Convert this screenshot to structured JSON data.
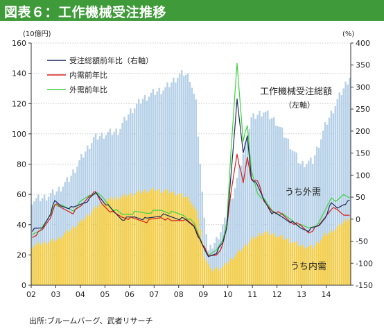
{
  "header": {
    "title": "図表６：工作機械受注推移"
  },
  "source": "出所:ブルームバーグ、武者リサーチ",
  "colors": {
    "header_bg": "#3f9a3a",
    "total_bars": "#b7d1e8",
    "domestic_bars": "#f6cf49",
    "total_yoy": "#1f2a5a",
    "domestic_yoy": "#d81e1e",
    "foreign_yoy": "#3ed13e"
  },
  "chart_data": {
    "type": "bar",
    "x_tick_labels": [
      "02",
      "03",
      "04",
      "05",
      "06",
      "07",
      "08",
      "09",
      "10",
      "11",
      "12",
      "13",
      "14"
    ],
    "left_axis": {
      "unit": "(10億円)",
      "range": [
        0,
        160
      ],
      "ticks": [
        0,
        20,
        40,
        60,
        80,
        100,
        120,
        140,
        160
      ]
    },
    "right_axis": {
      "unit": "(%)",
      "range": [
        -150,
        400
      ],
      "ticks": [
        -150,
        -100,
        -50,
        0,
        50,
        100,
        150,
        200,
        250,
        300,
        350,
        400
      ]
    },
    "grid": true,
    "legend": {
      "position": "top-left",
      "entries": [
        "受注総額前年比（右軸）",
        "内需前年比",
        "外需前年比"
      ]
    },
    "annotations": {
      "total": [
        "工作機械受注総額",
        "（左軸）"
      ],
      "foreign": "うち外需",
      "domestic": "うち内需"
    },
    "bar_series": [
      {
        "name": "工作機械受注総額",
        "axis": "left",
        "color": "#b7d1e8",
        "anchors": [
          [
            "2002-01",
            56
          ],
          [
            "2002-07",
            58
          ],
          [
            "2003-01",
            62
          ],
          [
            "2003-07",
            70
          ],
          [
            "2004-01",
            84
          ],
          [
            "2004-07",
            97
          ],
          [
            "2005-01",
            100
          ],
          [
            "2005-07",
            102
          ],
          [
            "2006-01",
            115
          ],
          [
            "2006-07",
            123
          ],
          [
            "2006-12",
            127
          ],
          [
            "2007-06",
            130
          ],
          [
            "2007-12",
            138
          ],
          [
            "2008-03",
            140
          ],
          [
            "2008-06",
            137
          ],
          [
            "2008-09",
            120
          ],
          [
            "2008-12",
            60
          ],
          [
            "2009-03",
            22
          ],
          [
            "2009-07",
            30
          ],
          [
            "2009-12",
            45
          ],
          [
            "2010-06",
            75
          ],
          [
            "2010-12",
            110
          ],
          [
            "2011-06",
            115
          ],
          [
            "2011-12",
            108
          ],
          [
            "2012-06",
            95
          ],
          [
            "2012-12",
            80
          ],
          [
            "2013-06",
            82
          ],
          [
            "2013-12",
            105
          ],
          [
            "2014-06",
            122
          ],
          [
            "2014-12",
            138
          ]
        ]
      },
      {
        "name": "うち内需",
        "axis": "left",
        "color": "#f6cf49",
        "anchors": [
          [
            "2002-01",
            26
          ],
          [
            "2002-07",
            28
          ],
          [
            "2003-01",
            30
          ],
          [
            "2003-07",
            36
          ],
          [
            "2004-01",
            42
          ],
          [
            "2004-07",
            50
          ],
          [
            "2005-01",
            56
          ],
          [
            "2005-07",
            58
          ],
          [
            "2006-01",
            60
          ],
          [
            "2006-07",
            62
          ],
          [
            "2007-01",
            63
          ],
          [
            "2007-07",
            62
          ],
          [
            "2008-01",
            60
          ],
          [
            "2008-06",
            57
          ],
          [
            "2008-10",
            45
          ],
          [
            "2009-01",
            20
          ],
          [
            "2009-04",
            10
          ],
          [
            "2009-10",
            12
          ],
          [
            "2010-06",
            22
          ],
          [
            "2010-12",
            30
          ],
          [
            "2011-06",
            35
          ],
          [
            "2011-12",
            33
          ],
          [
            "2012-06",
            30
          ],
          [
            "2012-12",
            26
          ],
          [
            "2013-06",
            25
          ],
          [
            "2013-12",
            33
          ],
          [
            "2014-06",
            38
          ],
          [
            "2014-12",
            45
          ]
        ]
      }
    ],
    "line_series": [
      {
        "name": "受注総額前年比（右軸）",
        "axis": "right",
        "color": "#1f2a5a",
        "anchors": [
          [
            "2002-01",
            -25
          ],
          [
            "2002-06",
            -20
          ],
          [
            "2002-10",
            15
          ],
          [
            "2002-12",
            40
          ],
          [
            "2003-03",
            30
          ],
          [
            "2003-09",
            25
          ],
          [
            "2004-01",
            35
          ],
          [
            "2004-05",
            45
          ],
          [
            "2004-08",
            60
          ],
          [
            "2004-11",
            45
          ],
          [
            "2005-04",
            20
          ],
          [
            "2005-09",
            0
          ],
          [
            "2006-03",
            5
          ],
          [
            "2006-09",
            0
          ],
          [
            "2007-04",
            10
          ],
          [
            "2007-09",
            5
          ],
          [
            "2008-03",
            0
          ],
          [
            "2008-08",
            -15
          ],
          [
            "2008-12",
            -60
          ],
          [
            "2009-03",
            -85
          ],
          [
            "2009-07",
            -75
          ],
          [
            "2009-10",
            -55
          ],
          [
            "2009-12",
            -20
          ],
          [
            "2010-02",
            100
          ],
          [
            "2010-05",
            270
          ],
          [
            "2010-08",
            150
          ],
          [
            "2010-10",
            190
          ],
          [
            "2010-12",
            95
          ],
          [
            "2011-03",
            75
          ],
          [
            "2011-06",
            45
          ],
          [
            "2011-10",
            15
          ],
          [
            "2012-03",
            5
          ],
          [
            "2012-07",
            -5
          ],
          [
            "2012-12",
            -20
          ],
          [
            "2013-04",
            -25
          ],
          [
            "2013-09",
            -15
          ],
          [
            "2013-12",
            5
          ],
          [
            "2014-03",
            35
          ],
          [
            "2014-06",
            25
          ],
          [
            "2014-09",
            35
          ],
          [
            "2014-12",
            40
          ]
        ]
      },
      {
        "name": "内需前年比",
        "axis": "right",
        "color": "#d81e1e",
        "anchors": [
          [
            "2002-01",
            -40
          ],
          [
            "2002-06",
            -25
          ],
          [
            "2002-10",
            5
          ],
          [
            "2002-12",
            35
          ],
          [
            "2003-03",
            25
          ],
          [
            "2003-09",
            15
          ],
          [
            "2004-01",
            30
          ],
          [
            "2004-05",
            55
          ],
          [
            "2004-08",
            60
          ],
          [
            "2004-11",
            35
          ],
          [
            "2005-04",
            15
          ],
          [
            "2005-09",
            5
          ],
          [
            "2006-03",
            0
          ],
          [
            "2006-09",
            -5
          ],
          [
            "2007-04",
            5
          ],
          [
            "2007-09",
            -5
          ],
          [
            "2008-03",
            0
          ],
          [
            "2008-08",
            -15
          ],
          [
            "2008-12",
            -55
          ],
          [
            "2009-03",
            -85
          ],
          [
            "2009-07",
            -80
          ],
          [
            "2009-10",
            -60
          ],
          [
            "2009-12",
            -20
          ],
          [
            "2010-02",
            60
          ],
          [
            "2010-05",
            150
          ],
          [
            "2010-08",
            80
          ],
          [
            "2010-10",
            140
          ],
          [
            "2010-12",
            90
          ],
          [
            "2011-03",
            90
          ],
          [
            "2011-06",
            40
          ],
          [
            "2011-10",
            20
          ],
          [
            "2012-03",
            10
          ],
          [
            "2012-07",
            -5
          ],
          [
            "2012-12",
            -15
          ],
          [
            "2013-04",
            -30
          ],
          [
            "2013-09",
            -15
          ],
          [
            "2013-12",
            5
          ],
          [
            "2014-03",
            25
          ],
          [
            "2014-06",
            20
          ],
          [
            "2014-09",
            10
          ],
          [
            "2014-12",
            12
          ]
        ]
      },
      {
        "name": "外需前年比",
        "axis": "right",
        "color": "#3ed13e",
        "anchors": [
          [
            "2002-01",
            -35
          ],
          [
            "2002-06",
            -20
          ],
          [
            "2002-10",
            10
          ],
          [
            "2002-12",
            35
          ],
          [
            "2003-03",
            30
          ],
          [
            "2003-09",
            20
          ],
          [
            "2004-01",
            40
          ],
          [
            "2004-05",
            55
          ],
          [
            "2004-08",
            60
          ],
          [
            "2004-11",
            50
          ],
          [
            "2005-04",
            25
          ],
          [
            "2005-09",
            10
          ],
          [
            "2006-03",
            15
          ],
          [
            "2006-09",
            15
          ],
          [
            "2007-04",
            20
          ],
          [
            "2007-09",
            15
          ],
          [
            "2008-03",
            10
          ],
          [
            "2008-08",
            -10
          ],
          [
            "2008-12",
            -55
          ],
          [
            "2009-03",
            -85
          ],
          [
            "2009-07",
            -70
          ],
          [
            "2009-10",
            -45
          ],
          [
            "2009-12",
            -10
          ],
          [
            "2010-02",
            150
          ],
          [
            "2010-05",
            355
          ],
          [
            "2010-08",
            180
          ],
          [
            "2010-10",
            210
          ],
          [
            "2010-12",
            110
          ],
          [
            "2011-03",
            60
          ],
          [
            "2011-06",
            45
          ],
          [
            "2011-10",
            20
          ],
          [
            "2012-03",
            10
          ],
          [
            "2012-07",
            0
          ],
          [
            "2012-12",
            -15
          ],
          [
            "2013-04",
            -20
          ],
          [
            "2013-09",
            -10
          ],
          [
            "2013-12",
            20
          ],
          [
            "2014-03",
            50
          ],
          [
            "2014-06",
            40
          ],
          [
            "2014-09",
            55
          ],
          [
            "2014-12",
            50
          ]
        ]
      }
    ]
  }
}
